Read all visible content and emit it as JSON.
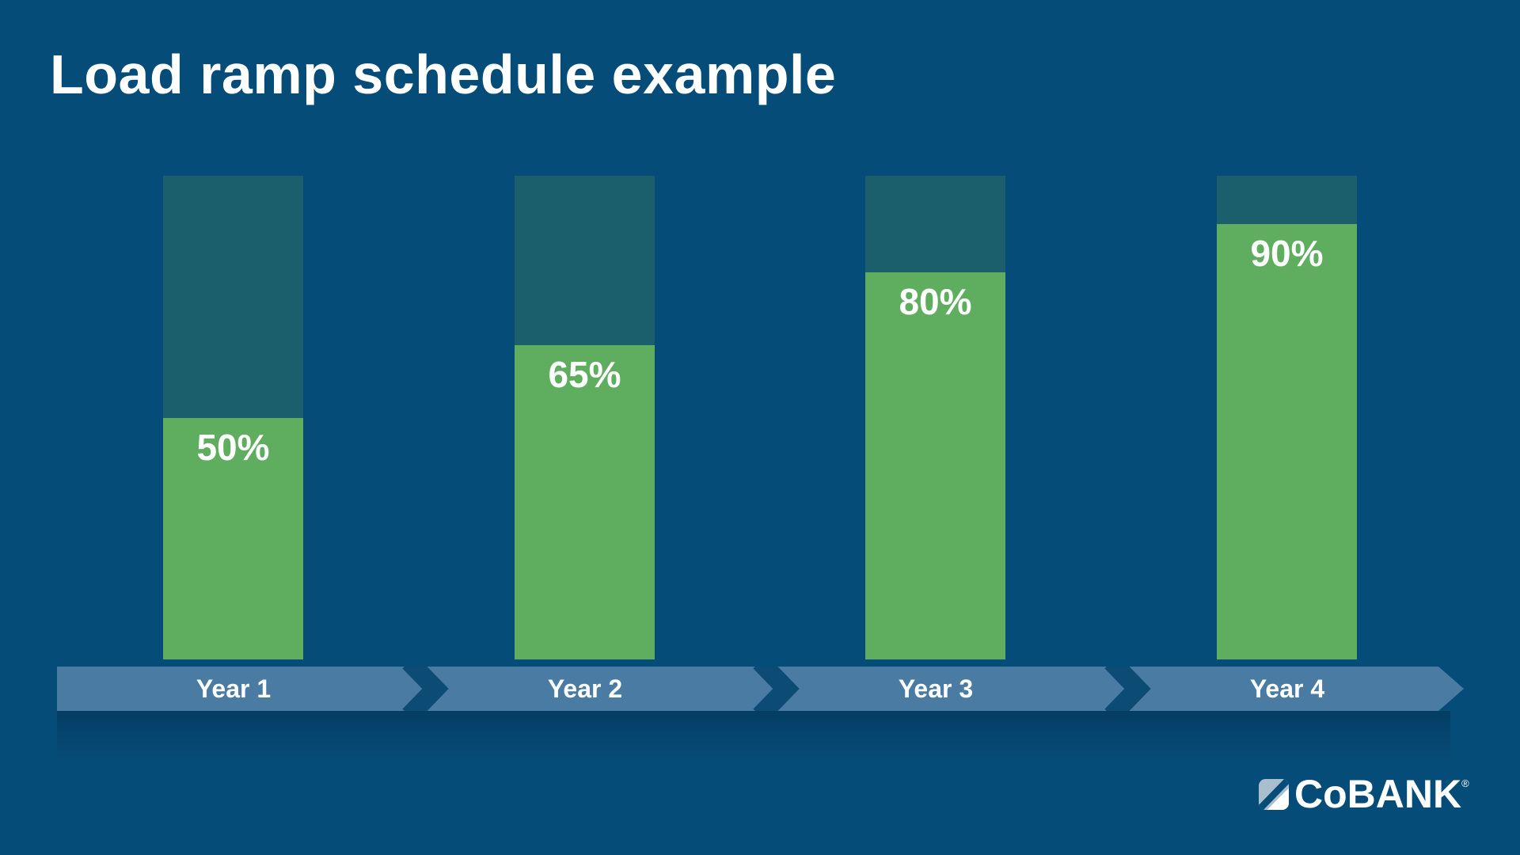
{
  "title": "Load ramp schedule example",
  "chart_data": {
    "type": "bar",
    "title": "Load ramp schedule example",
    "categories": [
      "Year 1",
      "Year 2",
      "Year 3",
      "Year 4"
    ],
    "values": [
      50,
      65,
      80,
      90
    ],
    "value_labels": [
      "50%",
      "65%",
      "80%",
      "90%"
    ],
    "ylim": [
      0,
      100
    ],
    "grid": false,
    "legend_position": "none",
    "note_capacity_track": 100
  },
  "colors": {
    "background": "#064C78",
    "bar_fill_green": "#5FAE60",
    "bar_capacity_teal": "#1B5F6C",
    "timeline_band": "#4A7CA3",
    "chevron_separator": "#0C4B74",
    "text": "#FFFFFF",
    "logo_accent_light": "#A9BFCF"
  },
  "timeline": {
    "labels": [
      "Year 1",
      "Year 2",
      "Year 3",
      "Year 4"
    ]
  },
  "logo": {
    "brand": "CoBANK",
    "registered_mark": "®"
  }
}
